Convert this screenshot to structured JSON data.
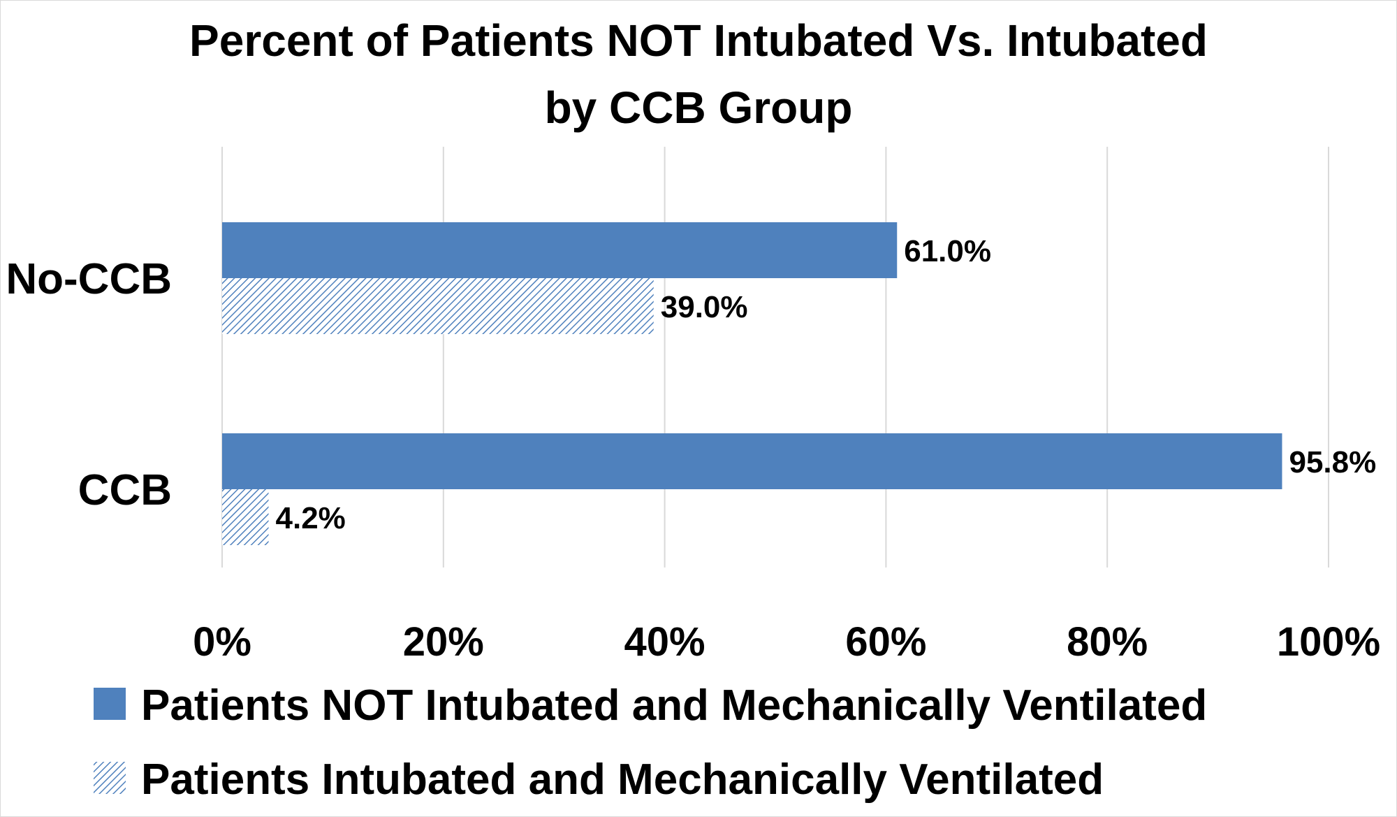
{
  "chart_data": {
    "type": "bar",
    "orientation": "horizontal",
    "title_lines": [
      "Percent of Patients NOT Intubated  Vs. Intubated",
      "by CCB Group"
    ],
    "categories": [
      "No-CCB",
      "CCB"
    ],
    "series": [
      {
        "name": "Patients NOT Intubated and Mechanically Ventilated",
        "values": [
          61.0,
          95.8
        ],
        "labels": [
          "61.0%",
          "95.8%"
        ],
        "color": "#4F81BD",
        "fill": "solid"
      },
      {
        "name": "Patients Intubated and Mechanically Ventilated",
        "values": [
          39.0,
          4.2
        ],
        "labels": [
          "39.0%",
          "4.2%"
        ],
        "color": "#4F81BD",
        "fill": "diagonal-hatch"
      }
    ],
    "xlim": [
      0,
      100
    ],
    "xticks": [
      0,
      20,
      40,
      60,
      80,
      100
    ],
    "xtick_labels": [
      "0%",
      "20%",
      "40%",
      "60%",
      "80%",
      "100%"
    ],
    "grid": "vertical",
    "legend_position": "bottom"
  }
}
